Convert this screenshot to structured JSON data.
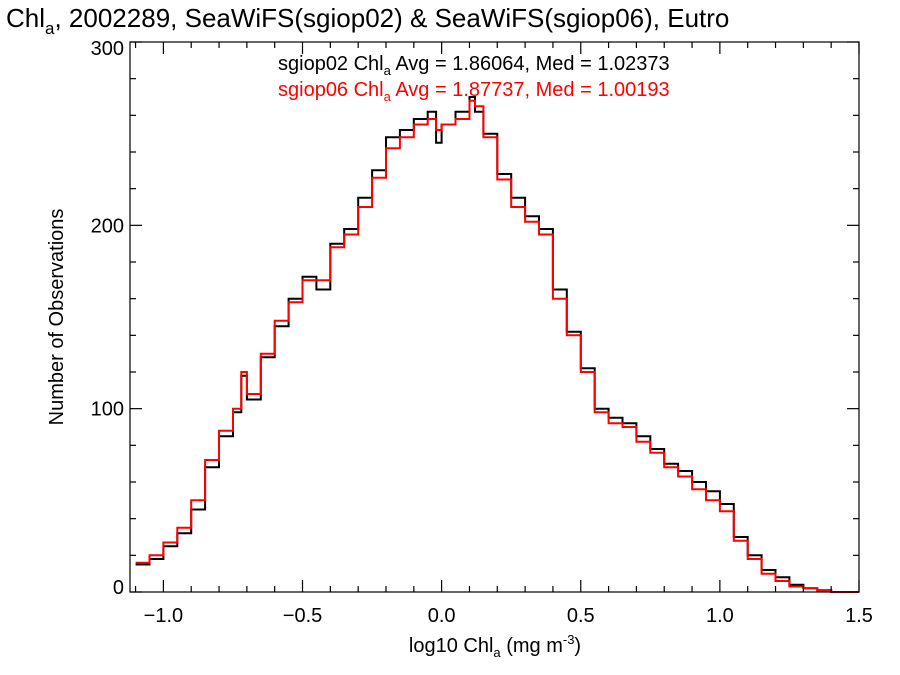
{
  "chart_data": {
    "type": "line",
    "title": {
      "prefix": "Chl",
      "prefix_sub": "a",
      "rest": ", 2002289, SeaWiFS(sgiop02) & SeaWiFS(sgiop06), Eutro"
    },
    "xlabel": {
      "prefix": "log10 Chl",
      "sub": "a",
      "middle": " (mg m",
      "sup": "-3",
      "end": ")"
    },
    "ylabel": "Number of Observations",
    "xlim": [
      -1.12,
      1.5
    ],
    "ylim": [
      0,
      300
    ],
    "xticks": [
      -1.0,
      -0.5,
      0.0,
      0.5,
      1.0,
      1.5
    ],
    "xtick_labels": [
      "−1.0",
      "−0.5",
      "0.0",
      "0.5",
      "1.0",
      "1.5"
    ],
    "yticks": [
      0,
      100,
      200,
      300
    ],
    "ytick_labels": [
      "0",
      "100",
      "200",
      "300"
    ],
    "grid": false,
    "legend_position": "top-center",
    "series": [
      {
        "name": "sgiop02",
        "color": "#000000",
        "legend": {
          "pre": "sgiop02 Chl",
          "sub": "a",
          "post": " Avg = 1.86064, Med = 1.02373"
        },
        "x": [
          -1.1,
          -1.05,
          -1.0,
          -0.95,
          -0.9,
          -0.85,
          -0.8,
          -0.75,
          -0.72,
          -0.7,
          -0.65,
          -0.6,
          -0.55,
          -0.5,
          -0.45,
          -0.4,
          -0.35,
          -0.3,
          -0.25,
          -0.2,
          -0.15,
          -0.1,
          -0.05,
          -0.02,
          0.0,
          0.05,
          0.1,
          0.12,
          0.15,
          0.2,
          0.25,
          0.3,
          0.35,
          0.4,
          0.45,
          0.5,
          0.55,
          0.6,
          0.65,
          0.7,
          0.75,
          0.8,
          0.85,
          0.9,
          0.95,
          1.0,
          1.05,
          1.1,
          1.15,
          1.2,
          1.25,
          1.3,
          1.35,
          1.4
        ],
        "y": [
          15,
          18,
          25,
          32,
          45,
          68,
          85,
          98,
          118,
          105,
          128,
          145,
          160,
          172,
          165,
          190,
          198,
          215,
          230,
          248,
          252,
          258,
          262,
          245,
          255,
          262,
          270,
          262,
          250,
          228,
          215,
          205,
          198,
          165,
          142,
          122,
          100,
          95,
          92,
          85,
          78,
          70,
          66,
          60,
          55,
          48,
          30,
          20,
          12,
          8,
          4,
          2,
          1,
          0
        ]
      },
      {
        "name": "sgiop06",
        "color": "#ff0000",
        "legend": {
          "pre": "sgiop06 Chl",
          "sub": "a",
          "post": " Avg = 1.87737, Med = 1.00193"
        },
        "x": [
          -1.1,
          -1.05,
          -1.0,
          -0.95,
          -0.9,
          -0.85,
          -0.8,
          -0.75,
          -0.72,
          -0.7,
          -0.65,
          -0.6,
          -0.55,
          -0.5,
          -0.45,
          -0.4,
          -0.35,
          -0.3,
          -0.25,
          -0.2,
          -0.15,
          -0.1,
          -0.05,
          -0.02,
          0.0,
          0.05,
          0.1,
          0.12,
          0.15,
          0.2,
          0.25,
          0.3,
          0.35,
          0.4,
          0.45,
          0.5,
          0.55,
          0.6,
          0.65,
          0.7,
          0.75,
          0.8,
          0.85,
          0.9,
          0.95,
          1.0,
          1.05,
          1.1,
          1.15,
          1.2,
          1.25,
          1.3,
          1.35,
          1.4
        ],
        "y": [
          16,
          20,
          27,
          35,
          50,
          72,
          88,
          100,
          120,
          108,
          130,
          148,
          158,
          170,
          170,
          188,
          195,
          210,
          226,
          242,
          248,
          255,
          258,
          252,
          255,
          258,
          268,
          265,
          248,
          225,
          210,
          202,
          195,
          160,
          140,
          120,
          98,
          92,
          90,
          82,
          76,
          68,
          63,
          56,
          50,
          44,
          28,
          18,
          10,
          6,
          3,
          2,
          1,
          0
        ]
      }
    ]
  }
}
